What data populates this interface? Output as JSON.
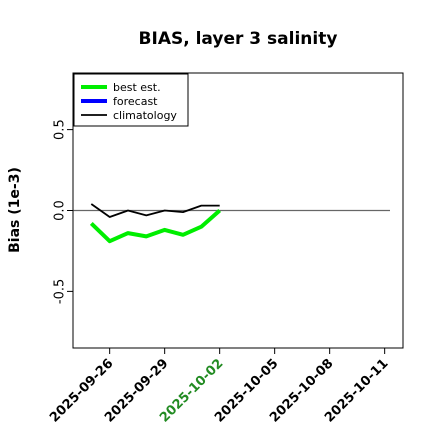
{
  "chart_data": {
    "type": "line",
    "title": "BIAS, layer 3 salinity",
    "ylabel": "Bias (1e-3)",
    "ylim": [
      -0.85,
      0.85
    ],
    "yticks": [
      -0.5,
      0.0,
      0.5
    ],
    "ytick_labels": [
      "-0.5",
      "0.0",
      "0.5"
    ],
    "xlim": [
      "2025-09-24",
      "2025-10-12"
    ],
    "xticks": [
      "2025-09-26",
      "2025-09-29",
      "2025-10-02",
      "2025-10-05",
      "2025-10-08",
      "2025-10-11"
    ],
    "highlight_tick": "2025-10-02",
    "highlight_color": "#228b22",
    "zero_line": 0.0,
    "legend_position": "top-left",
    "series": [
      {
        "name": "best est.",
        "color": "#00ee00",
        "x": [
          "2025-09-25",
          "2025-09-26",
          "2025-09-27",
          "2025-09-28",
          "2025-09-29",
          "2025-09-30",
          "2025-10-01",
          "2025-10-02"
        ],
        "values": [
          -0.08,
          -0.19,
          -0.14,
          -0.16,
          -0.12,
          -0.15,
          -0.1,
          0.0
        ]
      },
      {
        "name": "forecast",
        "color": "#0000ff",
        "x": [],
        "values": []
      },
      {
        "name": "climatology",
        "color": "#000000",
        "x": [
          "2025-09-25",
          "2025-09-26",
          "2025-09-27",
          "2025-09-28",
          "2025-09-29",
          "2025-09-30",
          "2025-10-01",
          "2025-10-02"
        ],
        "values": [
          0.04,
          -0.04,
          0.0,
          -0.03,
          0.0,
          -0.01,
          0.03,
          0.03
        ]
      }
    ]
  }
}
